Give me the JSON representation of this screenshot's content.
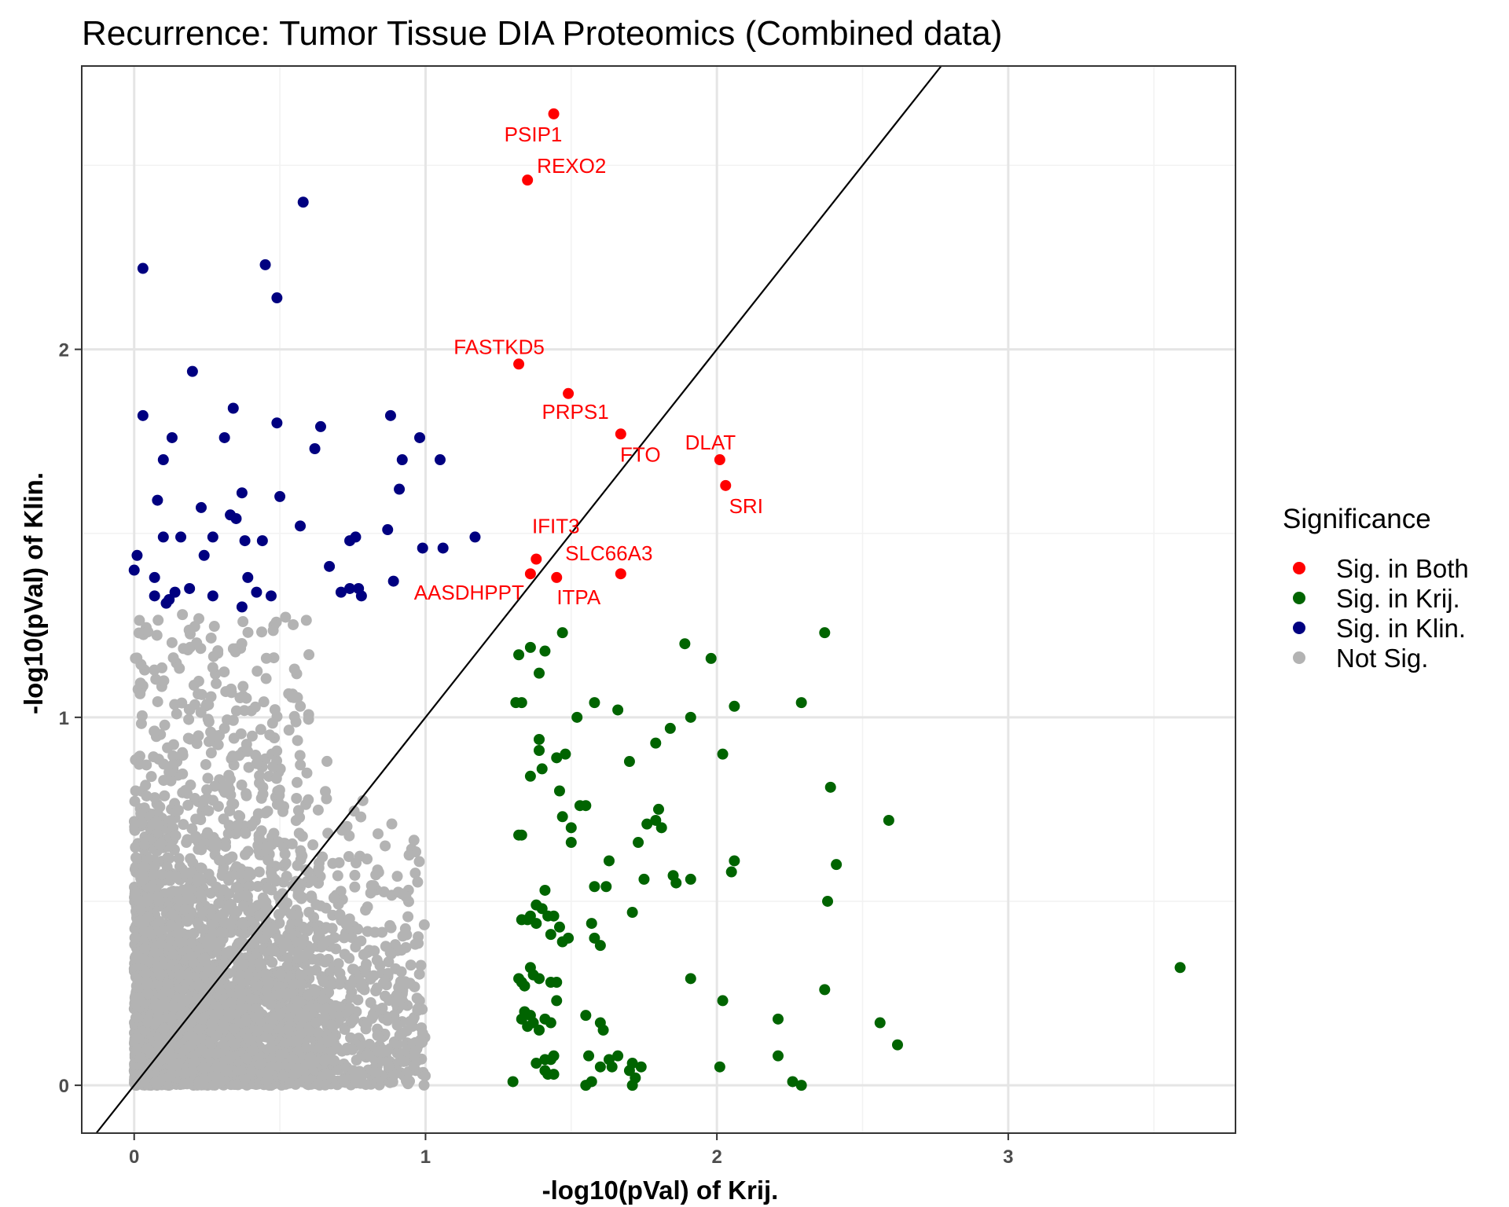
{
  "chart_data": {
    "type": "scatter",
    "title": "Recurrence: Tumor Tissue DIA Proteomics (Combined data)",
    "xlabel": "-log10(pVal) of Krij.",
    "ylabel": "-log10(pVal) of Klin.",
    "xlim": [
      -0.18,
      3.78
    ],
    "ylim": [
      -0.13,
      2.77
    ],
    "x_ticks": [
      0,
      1,
      2,
      3
    ],
    "y_ticks": [
      0,
      1,
      2
    ],
    "x_tick_labels": [
      "0",
      "1",
      "2",
      "3"
    ],
    "y_tick_labels": [
      "0",
      "1",
      "2"
    ],
    "grid": true,
    "diagonal_line": {
      "slope": 1,
      "intercept": 0
    },
    "legend": {
      "title": "Significance",
      "position": "right",
      "entries": [
        "Sig. in Both",
        "Sig. in Krij.",
        "Sig. in Klin.",
        "Not Sig."
      ]
    },
    "colors": {
      "Sig. in Both": "#ff0000",
      "Sig. in Krij.": "#006400",
      "Sig. in Klin.": "#000080",
      "Not Sig.": "#b3b3b3",
      "panel_border": "#333333",
      "grid_major": "#e5e5e5",
      "grid_minor": "#f2f2f2"
    },
    "series": [
      {
        "name": "Sig. in Both",
        "points": [
          {
            "x": 1.44,
            "y": 2.64,
            "label": "PSIP1"
          },
          {
            "x": 1.35,
            "y": 2.46,
            "label": "REXO2"
          },
          {
            "x": 1.32,
            "y": 1.96,
            "label": "FASTKD5"
          },
          {
            "x": 1.49,
            "y": 1.88,
            "label": "PRPS1"
          },
          {
            "x": 1.67,
            "y": 1.77,
            "label": "FTO"
          },
          {
            "x": 2.01,
            "y": 1.7,
            "label": "DLAT"
          },
          {
            "x": 2.03,
            "y": 1.63,
            "label": "SRI"
          },
          {
            "x": 1.38,
            "y": 1.43,
            "label": "IFIT3"
          },
          {
            "x": 1.67,
            "y": 1.39,
            "label": "SLC66A3"
          },
          {
            "x": 1.36,
            "y": 1.39,
            "label": "AASDHPPT"
          },
          {
            "x": 1.45,
            "y": 1.38,
            "label": "ITPA"
          }
        ]
      },
      {
        "name": "Sig. in Krij.",
        "points": [
          [
            1.32,
            1.17
          ],
          [
            1.36,
            1.19
          ],
          [
            1.41,
            1.18
          ],
          [
            1.47,
            1.23
          ],
          [
            1.39,
            1.12
          ],
          [
            1.31,
            1.04
          ],
          [
            1.33,
            1.04
          ],
          [
            1.52,
            1.0
          ],
          [
            1.58,
            1.04
          ],
          [
            1.66,
            1.02
          ],
          [
            1.89,
            1.2
          ],
          [
            1.98,
            1.16
          ],
          [
            2.37,
            1.23
          ],
          [
            2.06,
            1.03
          ],
          [
            2.29,
            1.04
          ],
          [
            1.84,
            0.97
          ],
          [
            1.91,
            1.0
          ],
          [
            1.79,
            0.93
          ],
          [
            2.02,
            0.9
          ],
          [
            1.39,
            0.94
          ],
          [
            1.39,
            0.91
          ],
          [
            1.45,
            0.89
          ],
          [
            1.48,
            0.9
          ],
          [
            1.36,
            0.84
          ],
          [
            1.7,
            0.88
          ],
          [
            1.4,
            0.86
          ],
          [
            1.46,
            0.8
          ],
          [
            1.53,
            0.76
          ],
          [
            1.55,
            0.76
          ],
          [
            1.47,
            0.73
          ],
          [
            1.5,
            0.7
          ],
          [
            1.5,
            0.66
          ],
          [
            1.33,
            0.68
          ],
          [
            1.32,
            0.68
          ],
          [
            1.8,
            0.75
          ],
          [
            1.79,
            0.72
          ],
          [
            1.76,
            0.71
          ],
          [
            1.81,
            0.7
          ],
          [
            1.73,
            0.66
          ],
          [
            2.39,
            0.81
          ],
          [
            2.59,
            0.72
          ],
          [
            2.06,
            0.61
          ],
          [
            2.05,
            0.58
          ],
          [
            2.41,
            0.6
          ],
          [
            1.63,
            0.61
          ],
          [
            1.85,
            0.57
          ],
          [
            1.86,
            0.55
          ],
          [
            1.91,
            0.56
          ],
          [
            1.75,
            0.56
          ],
          [
            1.58,
            0.54
          ],
          [
            1.62,
            0.54
          ],
          [
            1.41,
            0.53
          ],
          [
            2.38,
            0.5
          ],
          [
            1.38,
            0.49
          ],
          [
            1.4,
            0.48
          ],
          [
            1.35,
            0.45
          ],
          [
            1.36,
            0.46
          ],
          [
            1.42,
            0.46
          ],
          [
            1.38,
            0.44
          ],
          [
            1.44,
            0.46
          ],
          [
            1.33,
            0.45
          ],
          [
            1.46,
            0.43
          ],
          [
            1.43,
            0.41
          ],
          [
            1.49,
            0.4
          ],
          [
            1.57,
            0.44
          ],
          [
            1.58,
            0.4
          ],
          [
            1.71,
            0.47
          ],
          [
            1.6,
            0.38
          ],
          [
            1.47,
            0.39
          ],
          [
            1.32,
            0.29
          ],
          [
            1.33,
            0.28
          ],
          [
            1.34,
            0.27
          ],
          [
            1.37,
            0.3
          ],
          [
            1.39,
            0.29
          ],
          [
            1.36,
            0.32
          ],
          [
            1.43,
            0.28
          ],
          [
            1.45,
            0.28
          ],
          [
            1.91,
            0.29
          ],
          [
            3.59,
            0.32
          ],
          [
            2.37,
            0.26
          ],
          [
            1.45,
            0.23
          ],
          [
            1.34,
            0.2
          ],
          [
            1.36,
            0.19
          ],
          [
            1.33,
            0.18
          ],
          [
            1.35,
            0.16
          ],
          [
            1.37,
            0.17
          ],
          [
            1.39,
            0.15
          ],
          [
            1.41,
            0.18
          ],
          [
            1.43,
            0.17
          ],
          [
            1.55,
            0.19
          ],
          [
            1.6,
            0.17
          ],
          [
            1.61,
            0.15
          ],
          [
            2.02,
            0.23
          ],
          [
            2.21,
            0.18
          ],
          [
            2.56,
            0.17
          ],
          [
            2.62,
            0.11
          ],
          [
            1.38,
            0.06
          ],
          [
            1.41,
            0.07
          ],
          [
            1.43,
            0.07
          ],
          [
            1.44,
            0.08
          ],
          [
            1.41,
            0.04
          ],
          [
            1.44,
            0.03
          ],
          [
            1.42,
            0.03
          ],
          [
            1.56,
            0.08
          ],
          [
            1.6,
            0.05
          ],
          [
            1.63,
            0.07
          ],
          [
            1.66,
            0.08
          ],
          [
            1.64,
            0.05
          ],
          [
            1.7,
            0.04
          ],
          [
            1.71,
            0.06
          ],
          [
            1.74,
            0.05
          ],
          [
            1.72,
            0.02
          ],
          [
            1.71,
            0.0
          ],
          [
            1.55,
            0.0
          ],
          [
            1.57,
            0.01
          ],
          [
            1.3,
            0.01
          ],
          [
            2.01,
            0.05
          ],
          [
            2.21,
            0.08
          ],
          [
            2.26,
            0.01
          ],
          [
            2.29,
            0.0
          ]
        ]
      },
      {
        "name": "Sig. in Klin.",
        "points": [
          [
            0.58,
            2.4
          ],
          [
            0.03,
            2.22
          ],
          [
            0.45,
            2.23
          ],
          [
            0.49,
            2.14
          ],
          [
            0.2,
            1.94
          ],
          [
            0.03,
            1.82
          ],
          [
            0.34,
            1.84
          ],
          [
            0.49,
            1.8
          ],
          [
            0.64,
            1.79
          ],
          [
            0.88,
            1.82
          ],
          [
            0.13,
            1.76
          ],
          [
            0.31,
            1.76
          ],
          [
            0.98,
            1.76
          ],
          [
            0.1,
            1.7
          ],
          [
            0.62,
            1.73
          ],
          [
            0.92,
            1.7
          ],
          [
            1.05,
            1.7
          ],
          [
            0.37,
            1.61
          ],
          [
            0.5,
            1.6
          ],
          [
            0.91,
            1.62
          ],
          [
            0.08,
            1.59
          ],
          [
            0.23,
            1.57
          ],
          [
            0.33,
            1.55
          ],
          [
            0.35,
            1.54
          ],
          [
            0.57,
            1.52
          ],
          [
            0.87,
            1.51
          ],
          [
            0.1,
            1.49
          ],
          [
            0.16,
            1.49
          ],
          [
            0.27,
            1.49
          ],
          [
            0.38,
            1.48
          ],
          [
            0.44,
            1.48
          ],
          [
            0.76,
            1.49
          ],
          [
            0.74,
            1.48
          ],
          [
            0.99,
            1.46
          ],
          [
            1.06,
            1.46
          ],
          [
            1.17,
            1.49
          ],
          [
            0.01,
            1.44
          ],
          [
            0.24,
            1.44
          ],
          [
            0.0,
            1.4
          ],
          [
            0.67,
            1.41
          ],
          [
            0.07,
            1.38
          ],
          [
            0.39,
            1.38
          ],
          [
            0.89,
            1.37
          ],
          [
            0.14,
            1.34
          ],
          [
            0.19,
            1.35
          ],
          [
            0.42,
            1.34
          ],
          [
            0.47,
            1.33
          ],
          [
            0.71,
            1.34
          ],
          [
            0.74,
            1.35
          ],
          [
            0.77,
            1.35
          ],
          [
            0.78,
            1.33
          ],
          [
            0.07,
            1.33
          ],
          [
            0.12,
            1.32
          ],
          [
            0.11,
            1.31
          ],
          [
            0.27,
            1.33
          ],
          [
            0.37,
            1.3
          ]
        ]
      },
      {
        "name": "Not Sig.",
        "generated": true,
        "count": 3400,
        "x_range": [
          0.0,
          1.32
        ],
        "y_range": [
          0.0,
          1.3
        ]
      }
    ]
  }
}
